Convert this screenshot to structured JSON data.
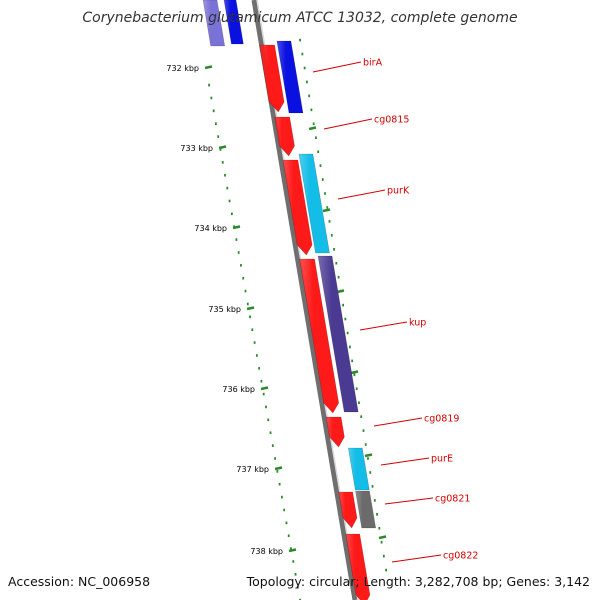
{
  "title": "Corynebacterium glutamicum ATCC 13032, complete genome",
  "accession": "Accession: NC_006958",
  "topology": "Topology: circular; Length: 3,282,708 bp; Genes: 3,142",
  "colors": {
    "forward_gene": "#ff1a1a",
    "label_line": "#d40000",
    "tick": "#2b8a2b",
    "backbone": "#8a8a8a"
  },
  "ticks": [
    "732 kbp",
    "733 kbp",
    "734 kbp",
    "735 kbp",
    "736 kbp",
    "737 kbp",
    "738 kbp"
  ],
  "genes": [
    {
      "label": "birA",
      "color": "#0a10e0"
    },
    {
      "label": "cg0815",
      "color": "#ff1a1a"
    },
    {
      "label": "purK",
      "color": "#14bde8"
    },
    {
      "label": "kup",
      "color": "#4b3a92"
    },
    {
      "label": "cg0819",
      "color": "#ff1a1a"
    },
    {
      "label": "purE",
      "color": "#14bde8"
    },
    {
      "label": "cg0821",
      "color": "#6b6b6b"
    },
    {
      "label": "cg0822",
      "color": "#ff1a1a"
    }
  ]
}
